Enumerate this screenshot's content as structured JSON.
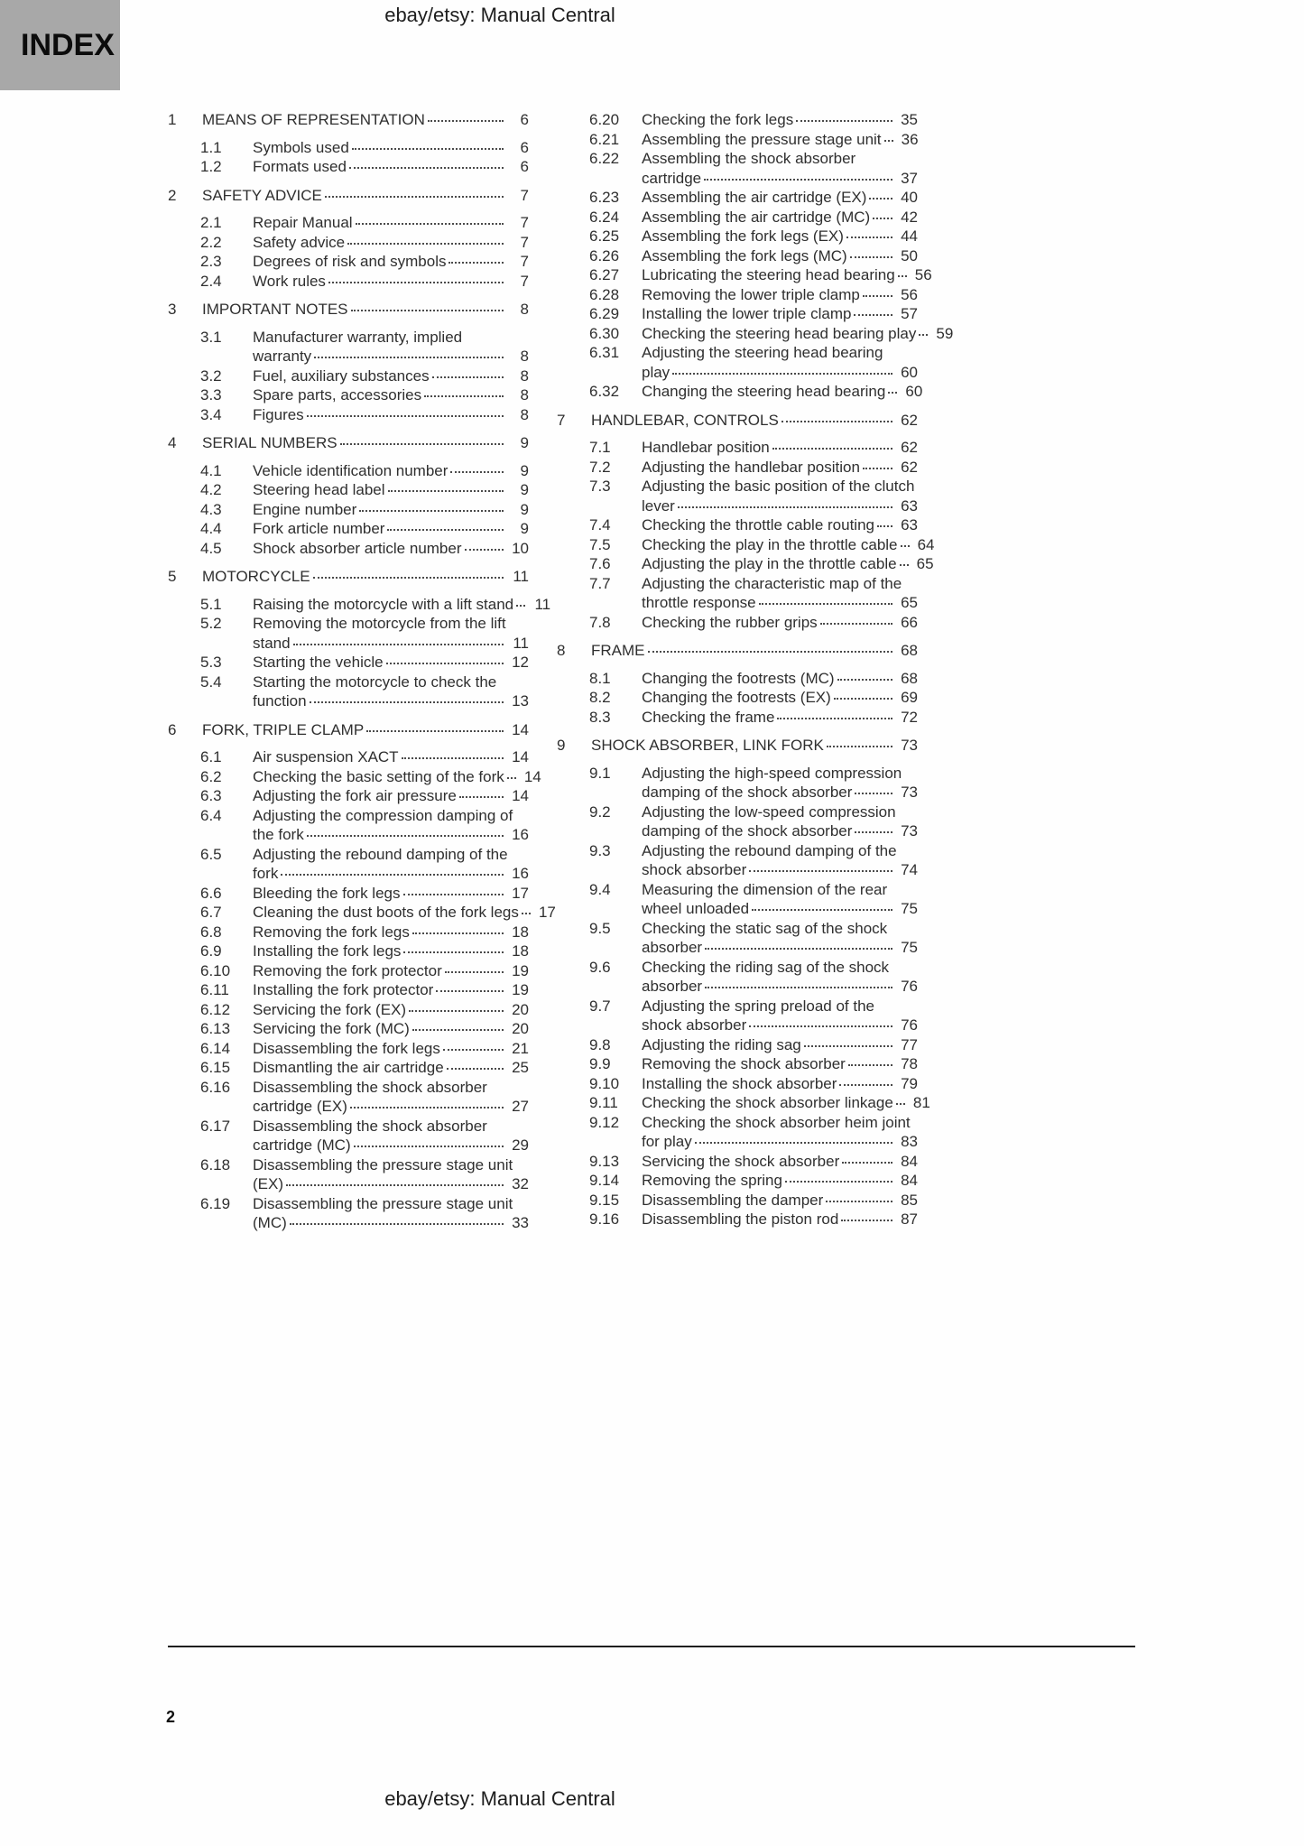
{
  "header": {
    "index_label": "INDEX",
    "title": "ebay/etsy: Manual Central"
  },
  "footer": {
    "title": "ebay/etsy: Manual Central",
    "page_number": "2"
  },
  "toc": {
    "left_column": [
      {
        "level": 1,
        "num": "1",
        "lines": [
          "MEANS OF REPRESENTATION"
        ],
        "page": "6"
      },
      {
        "level": 2,
        "num": "1.1",
        "lines": [
          "Symbols used"
        ],
        "page": "6"
      },
      {
        "level": 2,
        "num": "1.2",
        "lines": [
          "Formats used"
        ],
        "page": "6"
      },
      {
        "level": 1,
        "num": "2",
        "lines": [
          "SAFETY ADVICE"
        ],
        "page": "7"
      },
      {
        "level": 2,
        "num": "2.1",
        "lines": [
          "Repair Manual"
        ],
        "page": "7"
      },
      {
        "level": 2,
        "num": "2.2",
        "lines": [
          "Safety advice"
        ],
        "page": "7"
      },
      {
        "level": 2,
        "num": "2.3",
        "lines": [
          "Degrees of risk and symbols"
        ],
        "page": "7"
      },
      {
        "level": 2,
        "num": "2.4",
        "lines": [
          "Work rules"
        ],
        "page": "7"
      },
      {
        "level": 1,
        "num": "3",
        "lines": [
          "IMPORTANT NOTES"
        ],
        "page": "8"
      },
      {
        "level": 2,
        "num": "3.1",
        "lines": [
          "Manufacturer warranty, implied",
          "warranty"
        ],
        "page": "8"
      },
      {
        "level": 2,
        "num": "3.2",
        "lines": [
          "Fuel, auxiliary substances"
        ],
        "page": "8"
      },
      {
        "level": 2,
        "num": "3.3",
        "lines": [
          "Spare parts, accessories"
        ],
        "page": "8"
      },
      {
        "level": 2,
        "num": "3.4",
        "lines": [
          "Figures"
        ],
        "page": "8"
      },
      {
        "level": 1,
        "num": "4",
        "lines": [
          "SERIAL NUMBERS"
        ],
        "page": "9"
      },
      {
        "level": 2,
        "num": "4.1",
        "lines": [
          "Vehicle identification number"
        ],
        "page": "9"
      },
      {
        "level": 2,
        "num": "4.2",
        "lines": [
          "Steering head label"
        ],
        "page": "9"
      },
      {
        "level": 2,
        "num": "4.3",
        "lines": [
          "Engine number"
        ],
        "page": "9"
      },
      {
        "level": 2,
        "num": "4.4",
        "lines": [
          "Fork article number"
        ],
        "page": "9"
      },
      {
        "level": 2,
        "num": "4.5",
        "lines": [
          "Shock absorber article number"
        ],
        "page": "10"
      },
      {
        "level": 1,
        "num": "5",
        "lines": [
          "MOTORCYCLE"
        ],
        "page": "11"
      },
      {
        "level": 2,
        "num": "5.1",
        "lines": [
          "Raising the motorcycle with a lift stand"
        ],
        "page": "11"
      },
      {
        "level": 2,
        "num": "5.2",
        "lines": [
          "Removing the motorcycle from the lift",
          "stand"
        ],
        "page": "11"
      },
      {
        "level": 2,
        "num": "5.3",
        "lines": [
          "Starting the vehicle"
        ],
        "page": "12"
      },
      {
        "level": 2,
        "num": "5.4",
        "lines": [
          "Starting the motorcycle to check the",
          "function"
        ],
        "page": "13"
      },
      {
        "level": 1,
        "num": "6",
        "lines": [
          "FORK, TRIPLE CLAMP"
        ],
        "page": "14"
      },
      {
        "level": 2,
        "num": "6.1",
        "lines": [
          "Air suspension XACT"
        ],
        "page": "14"
      },
      {
        "level": 2,
        "num": "6.2",
        "lines": [
          "Checking the basic setting of the fork"
        ],
        "page": "14"
      },
      {
        "level": 2,
        "num": "6.3",
        "lines": [
          "Adjusting the fork air pressure"
        ],
        "page": "14"
      },
      {
        "level": 2,
        "num": "6.4",
        "lines": [
          "Adjusting the compression damping of",
          "the fork"
        ],
        "page": "16"
      },
      {
        "level": 2,
        "num": "6.5",
        "lines": [
          "Adjusting the rebound damping of the",
          "fork"
        ],
        "page": "16"
      },
      {
        "level": 2,
        "num": "6.6",
        "lines": [
          "Bleeding the fork legs"
        ],
        "page": "17"
      },
      {
        "level": 2,
        "num": "6.7",
        "lines": [
          "Cleaning the dust boots of the fork legs"
        ],
        "page": "17"
      },
      {
        "level": 2,
        "num": "6.8",
        "lines": [
          "Removing the fork legs"
        ],
        "page": "18"
      },
      {
        "level": 2,
        "num": "6.9",
        "lines": [
          "Installing the fork legs"
        ],
        "page": "18"
      },
      {
        "level": 2,
        "num": "6.10",
        "lines": [
          "Removing the fork protector"
        ],
        "page": "19"
      },
      {
        "level": 2,
        "num": "6.11",
        "lines": [
          "Installing the fork protector"
        ],
        "page": "19"
      },
      {
        "level": 2,
        "num": "6.12",
        "lines": [
          "Servicing the fork (EX)"
        ],
        "page": "20"
      },
      {
        "level": 2,
        "num": "6.13",
        "lines": [
          "Servicing the fork (MC)"
        ],
        "page": "20"
      },
      {
        "level": 2,
        "num": "6.14",
        "lines": [
          "Disassembling the fork legs"
        ],
        "page": "21"
      },
      {
        "level": 2,
        "num": "6.15",
        "lines": [
          "Dismantling the air cartridge"
        ],
        "page": "25"
      },
      {
        "level": 2,
        "num": "6.16",
        "lines": [
          "Disassembling the shock absorber",
          "cartridge (EX)"
        ],
        "page": "27"
      },
      {
        "level": 2,
        "num": "6.17",
        "lines": [
          "Disassembling the shock absorber",
          "cartridge (MC)"
        ],
        "page": "29"
      },
      {
        "level": 2,
        "num": "6.18",
        "lines": [
          "Disassembling the pressure stage unit",
          "(EX)"
        ],
        "page": "32"
      },
      {
        "level": 2,
        "num": "6.19",
        "lines": [
          "Disassembling the pressure stage unit",
          "(MC)"
        ],
        "page": "33"
      }
    ],
    "right_column": [
      {
        "level": 2,
        "num": "6.20",
        "lines": [
          "Checking the fork legs"
        ],
        "page": "35"
      },
      {
        "level": 2,
        "num": "6.21",
        "lines": [
          "Assembling the pressure stage unit"
        ],
        "page": "36"
      },
      {
        "level": 2,
        "num": "6.22",
        "lines": [
          "Assembling the shock absorber",
          "cartridge"
        ],
        "page": "37"
      },
      {
        "level": 2,
        "num": "6.23",
        "lines": [
          "Assembling the air cartridge (EX)"
        ],
        "page": "40"
      },
      {
        "level": 2,
        "num": "6.24",
        "lines": [
          "Assembling the air cartridge (MC)"
        ],
        "page": "42"
      },
      {
        "level": 2,
        "num": "6.25",
        "lines": [
          "Assembling the fork legs (EX)"
        ],
        "page": "44"
      },
      {
        "level": 2,
        "num": "6.26",
        "lines": [
          "Assembling the fork legs (MC)"
        ],
        "page": "50"
      },
      {
        "level": 2,
        "num": "6.27",
        "lines": [
          "Lubricating the steering head bearing"
        ],
        "page": "56"
      },
      {
        "level": 2,
        "num": "6.28",
        "lines": [
          "Removing the lower triple clamp"
        ],
        "page": "56"
      },
      {
        "level": 2,
        "num": "6.29",
        "lines": [
          "Installing the lower triple clamp"
        ],
        "page": "57"
      },
      {
        "level": 2,
        "num": "6.30",
        "lines": [
          "Checking the steering head bearing play"
        ],
        "page": "59"
      },
      {
        "level": 2,
        "num": "6.31",
        "lines": [
          "Adjusting the steering head bearing",
          "play"
        ],
        "page": "60"
      },
      {
        "level": 2,
        "num": "6.32",
        "lines": [
          "Changing the steering head bearing"
        ],
        "page": "60"
      },
      {
        "level": 1,
        "num": "7",
        "lines": [
          "HANDLEBAR, CONTROLS"
        ],
        "page": "62"
      },
      {
        "level": 2,
        "num": "7.1",
        "lines": [
          "Handlebar position"
        ],
        "page": "62"
      },
      {
        "level": 2,
        "num": "7.2",
        "lines": [
          "Adjusting the handlebar position"
        ],
        "page": "62"
      },
      {
        "level": 2,
        "num": "7.3",
        "lines": [
          "Adjusting the basic position of the clutch",
          "lever"
        ],
        "page": "63"
      },
      {
        "level": 2,
        "num": "7.4",
        "lines": [
          "Checking the throttle cable routing"
        ],
        "page": "63"
      },
      {
        "level": 2,
        "num": "7.5",
        "lines": [
          "Checking the play in the throttle cable"
        ],
        "page": "64"
      },
      {
        "level": 2,
        "num": "7.6",
        "lines": [
          "Adjusting the play in the throttle cable"
        ],
        "page": "65"
      },
      {
        "level": 2,
        "num": "7.7",
        "lines": [
          "Adjusting the characteristic map of the",
          "throttle response"
        ],
        "page": "65"
      },
      {
        "level": 2,
        "num": "7.8",
        "lines": [
          "Checking the rubber grips"
        ],
        "page": "66"
      },
      {
        "level": 1,
        "num": "8",
        "lines": [
          "FRAME"
        ],
        "page": "68"
      },
      {
        "level": 2,
        "num": "8.1",
        "lines": [
          "Changing the footrests (MC)"
        ],
        "page": "68"
      },
      {
        "level": 2,
        "num": "8.2",
        "lines": [
          "Changing the footrests (EX)"
        ],
        "page": "69"
      },
      {
        "level": 2,
        "num": "8.3",
        "lines": [
          "Checking the frame"
        ],
        "page": "72"
      },
      {
        "level": 1,
        "num": "9",
        "lines": [
          "SHOCK ABSORBER, LINK FORK"
        ],
        "page": "73"
      },
      {
        "level": 2,
        "num": "9.1",
        "lines": [
          "Adjusting the high-speed compression",
          "damping of the shock absorber"
        ],
        "page": "73"
      },
      {
        "level": 2,
        "num": "9.2",
        "lines": [
          "Adjusting the low-speed compression",
          "damping of the shock absorber"
        ],
        "page": "73"
      },
      {
        "level": 2,
        "num": "9.3",
        "lines": [
          "Adjusting the rebound damping of the",
          "shock absorber"
        ],
        "page": "74"
      },
      {
        "level": 2,
        "num": "9.4",
        "lines": [
          "Measuring the dimension of the rear",
          "wheel unloaded"
        ],
        "page": "75"
      },
      {
        "level": 2,
        "num": "9.5",
        "lines": [
          "Checking the static sag of the shock",
          "absorber"
        ],
        "page": "75"
      },
      {
        "level": 2,
        "num": "9.6",
        "lines": [
          "Checking the riding sag of the shock",
          "absorber"
        ],
        "page": "76"
      },
      {
        "level": 2,
        "num": "9.7",
        "lines": [
          "Adjusting the spring preload of the",
          "shock absorber"
        ],
        "page": "76"
      },
      {
        "level": 2,
        "num": "9.8",
        "lines": [
          "Adjusting the riding sag"
        ],
        "page": "77"
      },
      {
        "level": 2,
        "num": "9.9",
        "lines": [
          "Removing the shock absorber"
        ],
        "page": "78"
      },
      {
        "level": 2,
        "num": "9.10",
        "lines": [
          "Installing the shock absorber"
        ],
        "page": "79"
      },
      {
        "level": 2,
        "num": "9.11",
        "lines": [
          "Checking the shock absorber linkage"
        ],
        "page": "81"
      },
      {
        "level": 2,
        "num": "9.12",
        "lines": [
          "Checking the shock absorber heim joint",
          "for play"
        ],
        "page": "83"
      },
      {
        "level": 2,
        "num": "9.13",
        "lines": [
          "Servicing the shock absorber"
        ],
        "page": "84"
      },
      {
        "level": 2,
        "num": "9.14",
        "lines": [
          "Removing the spring"
        ],
        "page": "84"
      },
      {
        "level": 2,
        "num": "9.15",
        "lines": [
          "Disassembling the damper"
        ],
        "page": "85"
      },
      {
        "level": 2,
        "num": "9.16",
        "lines": [
          "Disassembling the piston rod"
        ],
        "page": "87"
      }
    ]
  }
}
